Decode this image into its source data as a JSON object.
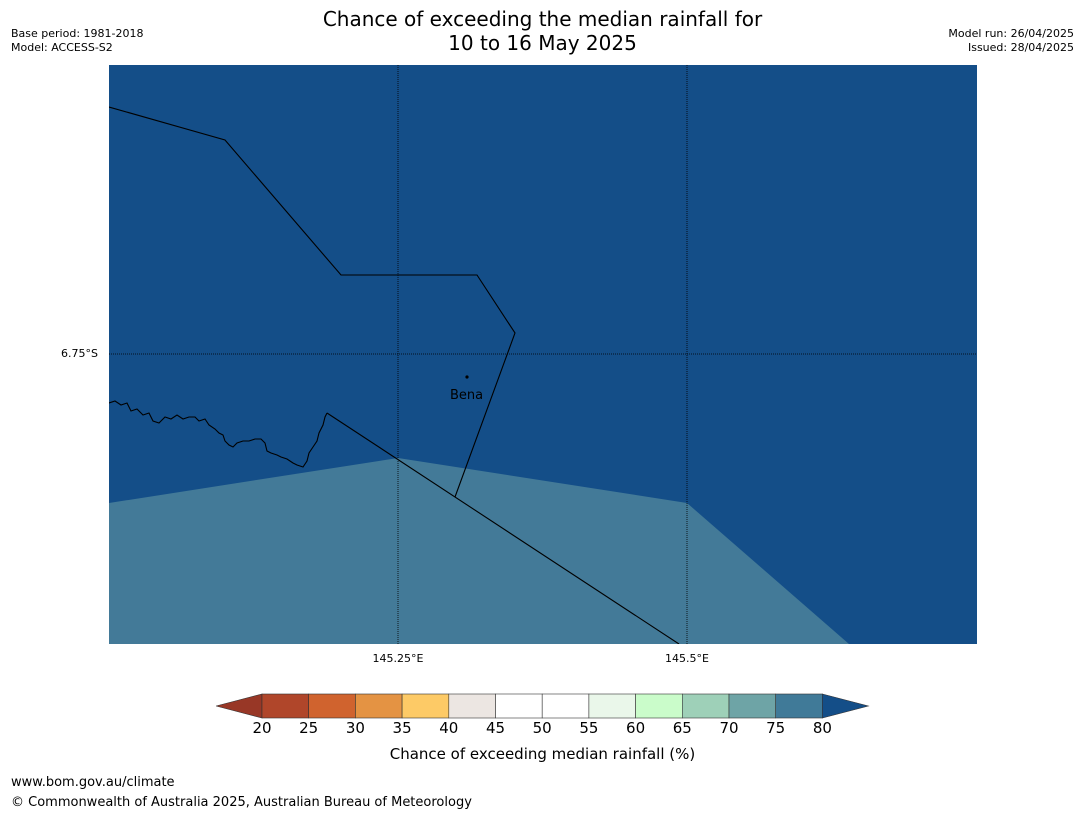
{
  "header": {
    "title_line1": "Chance of exceeding the median rainfall for",
    "title_line2": "10 to 16 May 2025",
    "base_period": "Base period: 1981-2018",
    "model": "Model: ACCESS-S2",
    "model_run": "Model run: 26/04/2025",
    "issued": "Issued: 28/04/2025"
  },
  "map": {
    "lat_label": "6.75°S",
    "lon_labels": [
      "145.25°E",
      "145.5°E"
    ],
    "place_name": "Bena",
    "colors": {
      "high_prob": "#144e88",
      "mid_prob": "#437a98"
    }
  },
  "colorbar": {
    "label": "Chance of exceeding median rainfall (%)",
    "ticks": [
      "20",
      "25",
      "30",
      "35",
      "40",
      "45",
      "50",
      "55",
      "60",
      "65",
      "70",
      "75",
      "80"
    ],
    "colors": [
      "#b0462a",
      "#d0632e",
      "#e49343",
      "#fdca66",
      "#ece6e2",
      "#ffffff",
      "#ffffff",
      "#eaf7ea",
      "#cafcca",
      "#9ed0b8",
      "#6ea4a6",
      "#407a98"
    ],
    "low_extend_color": "#983726",
    "high_extend_color": "#144e88"
  },
  "footer": {
    "url": "www.bom.gov.au/climate",
    "copyright": "© Commonwealth of Australia 2025, Australian Bureau of Meteorology"
  }
}
